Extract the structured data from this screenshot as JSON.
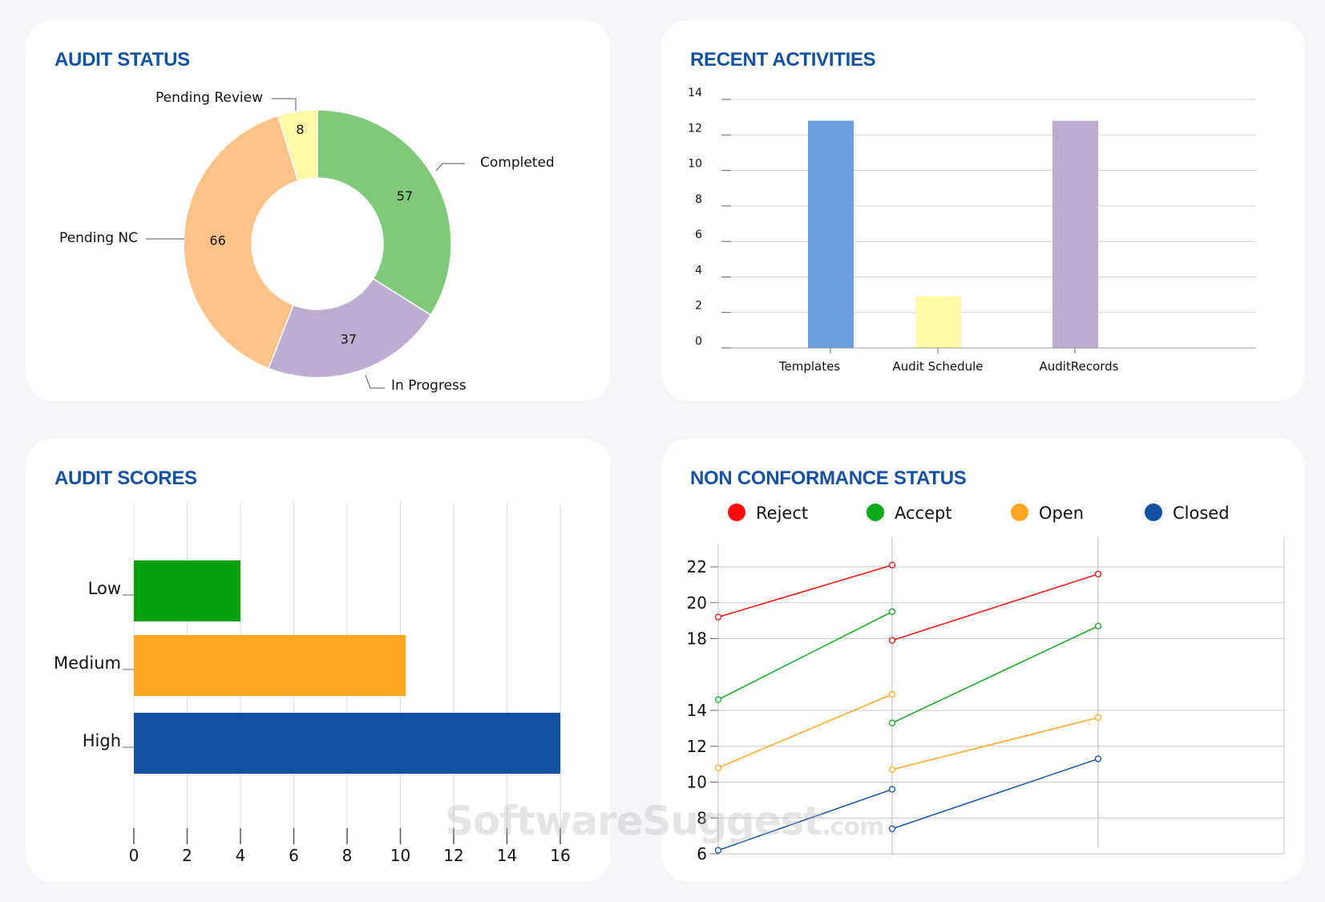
{
  "watermark": {
    "main": "SoftwareSuggest",
    "suffix": ".com"
  },
  "chart_data": [
    {
      "id": "audit-status",
      "type": "pie",
      "title": "AUDIT STATUS",
      "donut": true,
      "slices": [
        {
          "label": "Completed",
          "value": 57,
          "color": "#80c97b"
        },
        {
          "label": "In Progress",
          "value": 37,
          "color": "#beadd3"
        },
        {
          "label": "Pending NC",
          "value": 66,
          "color": "#fcc287"
        },
        {
          "label": "Pending Review",
          "value": 8,
          "color": "#fef9a5"
        }
      ]
    },
    {
      "id": "recent-activities",
      "type": "bar",
      "title": "RECENT ACTIVITIES",
      "categories": [
        "Templates",
        "Audit Schedule",
        "AuditRecords"
      ],
      "values": [
        12.8,
        2.9,
        12.8
      ],
      "colors": [
        "#6a9fdd",
        "#fef9a5",
        "#beadd3"
      ],
      "ylim": [
        0,
        14
      ],
      "yticks": [
        0,
        2,
        4,
        6,
        8,
        10,
        12,
        14
      ],
      "grid": true
    },
    {
      "id": "audit-scores",
      "type": "bar",
      "orientation": "horizontal",
      "title": "AUDIT SCORES",
      "categories": [
        "Low",
        "Medium",
        "High"
      ],
      "values": [
        4,
        10.2,
        16
      ],
      "colors": [
        "#03a00f",
        "#fea521",
        "#1152a2"
      ],
      "xlim": [
        0,
        16
      ],
      "xticks": [
        0,
        2,
        4,
        6,
        8,
        10,
        12,
        14,
        16
      ],
      "grid": true
    },
    {
      "id": "non-conformance-status",
      "type": "line",
      "title": "NON CONFORMANCE STATUS",
      "legend_position": "top",
      "x": [
        0,
        1,
        2
      ],
      "ylim": [
        6,
        23.3
      ],
      "yticks": [
        6,
        8,
        10,
        12,
        14,
        18,
        20,
        22
      ],
      "grid": true,
      "series": [
        {
          "name": "Reject",
          "color": "#fb0d0d",
          "segments": [
            [
              [
                0,
                19.2
              ],
              [
                1,
                22.1
              ]
            ],
            [
              [
                1,
                17.9
              ],
              [
                2,
                21.6
              ]
            ]
          ]
        },
        {
          "name": "Accept",
          "color": "#10a91c",
          "segments": [
            [
              [
                0,
                14.6
              ],
              [
                1,
                19.5
              ]
            ],
            [
              [
                1,
                13.3
              ],
              [
                2,
                18.7
              ]
            ]
          ]
        },
        {
          "name": "Open",
          "color": "#fea521",
          "segments": [
            [
              [
                0,
                10.8
              ],
              [
                1,
                14.9
              ]
            ],
            [
              [
                1,
                10.7
              ],
              [
                2,
                13.6
              ]
            ]
          ]
        },
        {
          "name": "Closed",
          "color": "#1152a2",
          "segments": [
            [
              [
                0,
                6.2
              ],
              [
                1,
                9.6
              ]
            ],
            [
              [
                1,
                7.4
              ],
              [
                2,
                11.3
              ]
            ]
          ]
        }
      ]
    }
  ]
}
